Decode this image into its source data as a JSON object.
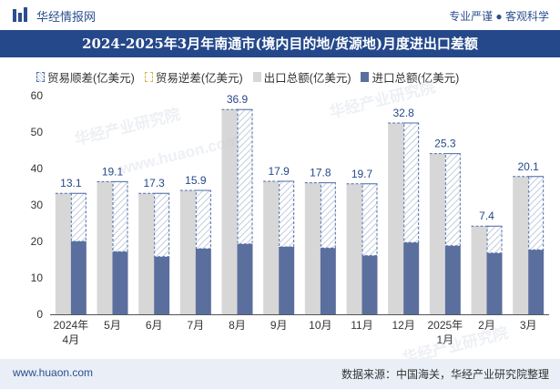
{
  "header": {
    "brand": "华经情报网",
    "slogan": "专业严谨 ● 客观科学"
  },
  "title": "2024-2025年3月年南通市(境内目的地/货源地)月度进出口差额",
  "legend": {
    "surplus": "贸易顺差(亿美元)",
    "deficit": "贸易逆差(亿美元)",
    "total": "出口总额(亿美元)",
    "import": "进口总额(亿美元)"
  },
  "footer": {
    "url": "www.huaon.com",
    "source": "数据来源：中国海关，华经产业研究院整理"
  },
  "watermarks": [
    "华经产业研究院",
    "华经产业研究院",
    "www.huaon.com",
    "华经产业研究院"
  ],
  "colors": {
    "header_bg": "#24488a",
    "total": "#d7d7d7",
    "import": "#5b6f9e",
    "surplus_border": "#4f6ea8",
    "label": "#24488a"
  },
  "chart_data": {
    "type": "bar",
    "categories": [
      "2024年4月",
      "5月",
      "6月",
      "7月",
      "8月",
      "9月",
      "10月",
      "11月",
      "12月",
      "2025年1月",
      "2月",
      "3月"
    ],
    "series": [
      {
        "name": "出口总额(亿美元)",
        "values": [
          33.2,
          36.4,
          33.2,
          34.0,
          56.2,
          36.5,
          36.1,
          35.8,
          52.5,
          44.1,
          24.2,
          37.8
        ]
      },
      {
        "name": "进口总额(亿美元)",
        "values": [
          20.0,
          17.2,
          15.8,
          18.0,
          19.3,
          18.5,
          18.2,
          16.1,
          19.7,
          18.8,
          16.8,
          17.7
        ]
      },
      {
        "name": "贸易顺差(亿美元)",
        "values": [
          13.1,
          19.1,
          17.3,
          15.9,
          36.9,
          17.9,
          17.8,
          19.7,
          32.8,
          25.3,
          7.4,
          20.1
        ]
      }
    ],
    "data_labels": [
      "13.1",
      "19.1",
      "17.3",
      "15.9",
      "36.9",
      "17.9",
      "17.8",
      "19.7",
      "32.8",
      "25.3",
      "7.4",
      "20.1"
    ],
    "y_ticks": [
      "0",
      "10",
      "20",
      "30",
      "40",
      "50",
      "60"
    ],
    "ylim": [
      0,
      60
    ],
    "title": "2024-2025年3月年南通市(境内目的地/货源地)月度进出口差额",
    "xlabel": "",
    "ylabel": ""
  }
}
